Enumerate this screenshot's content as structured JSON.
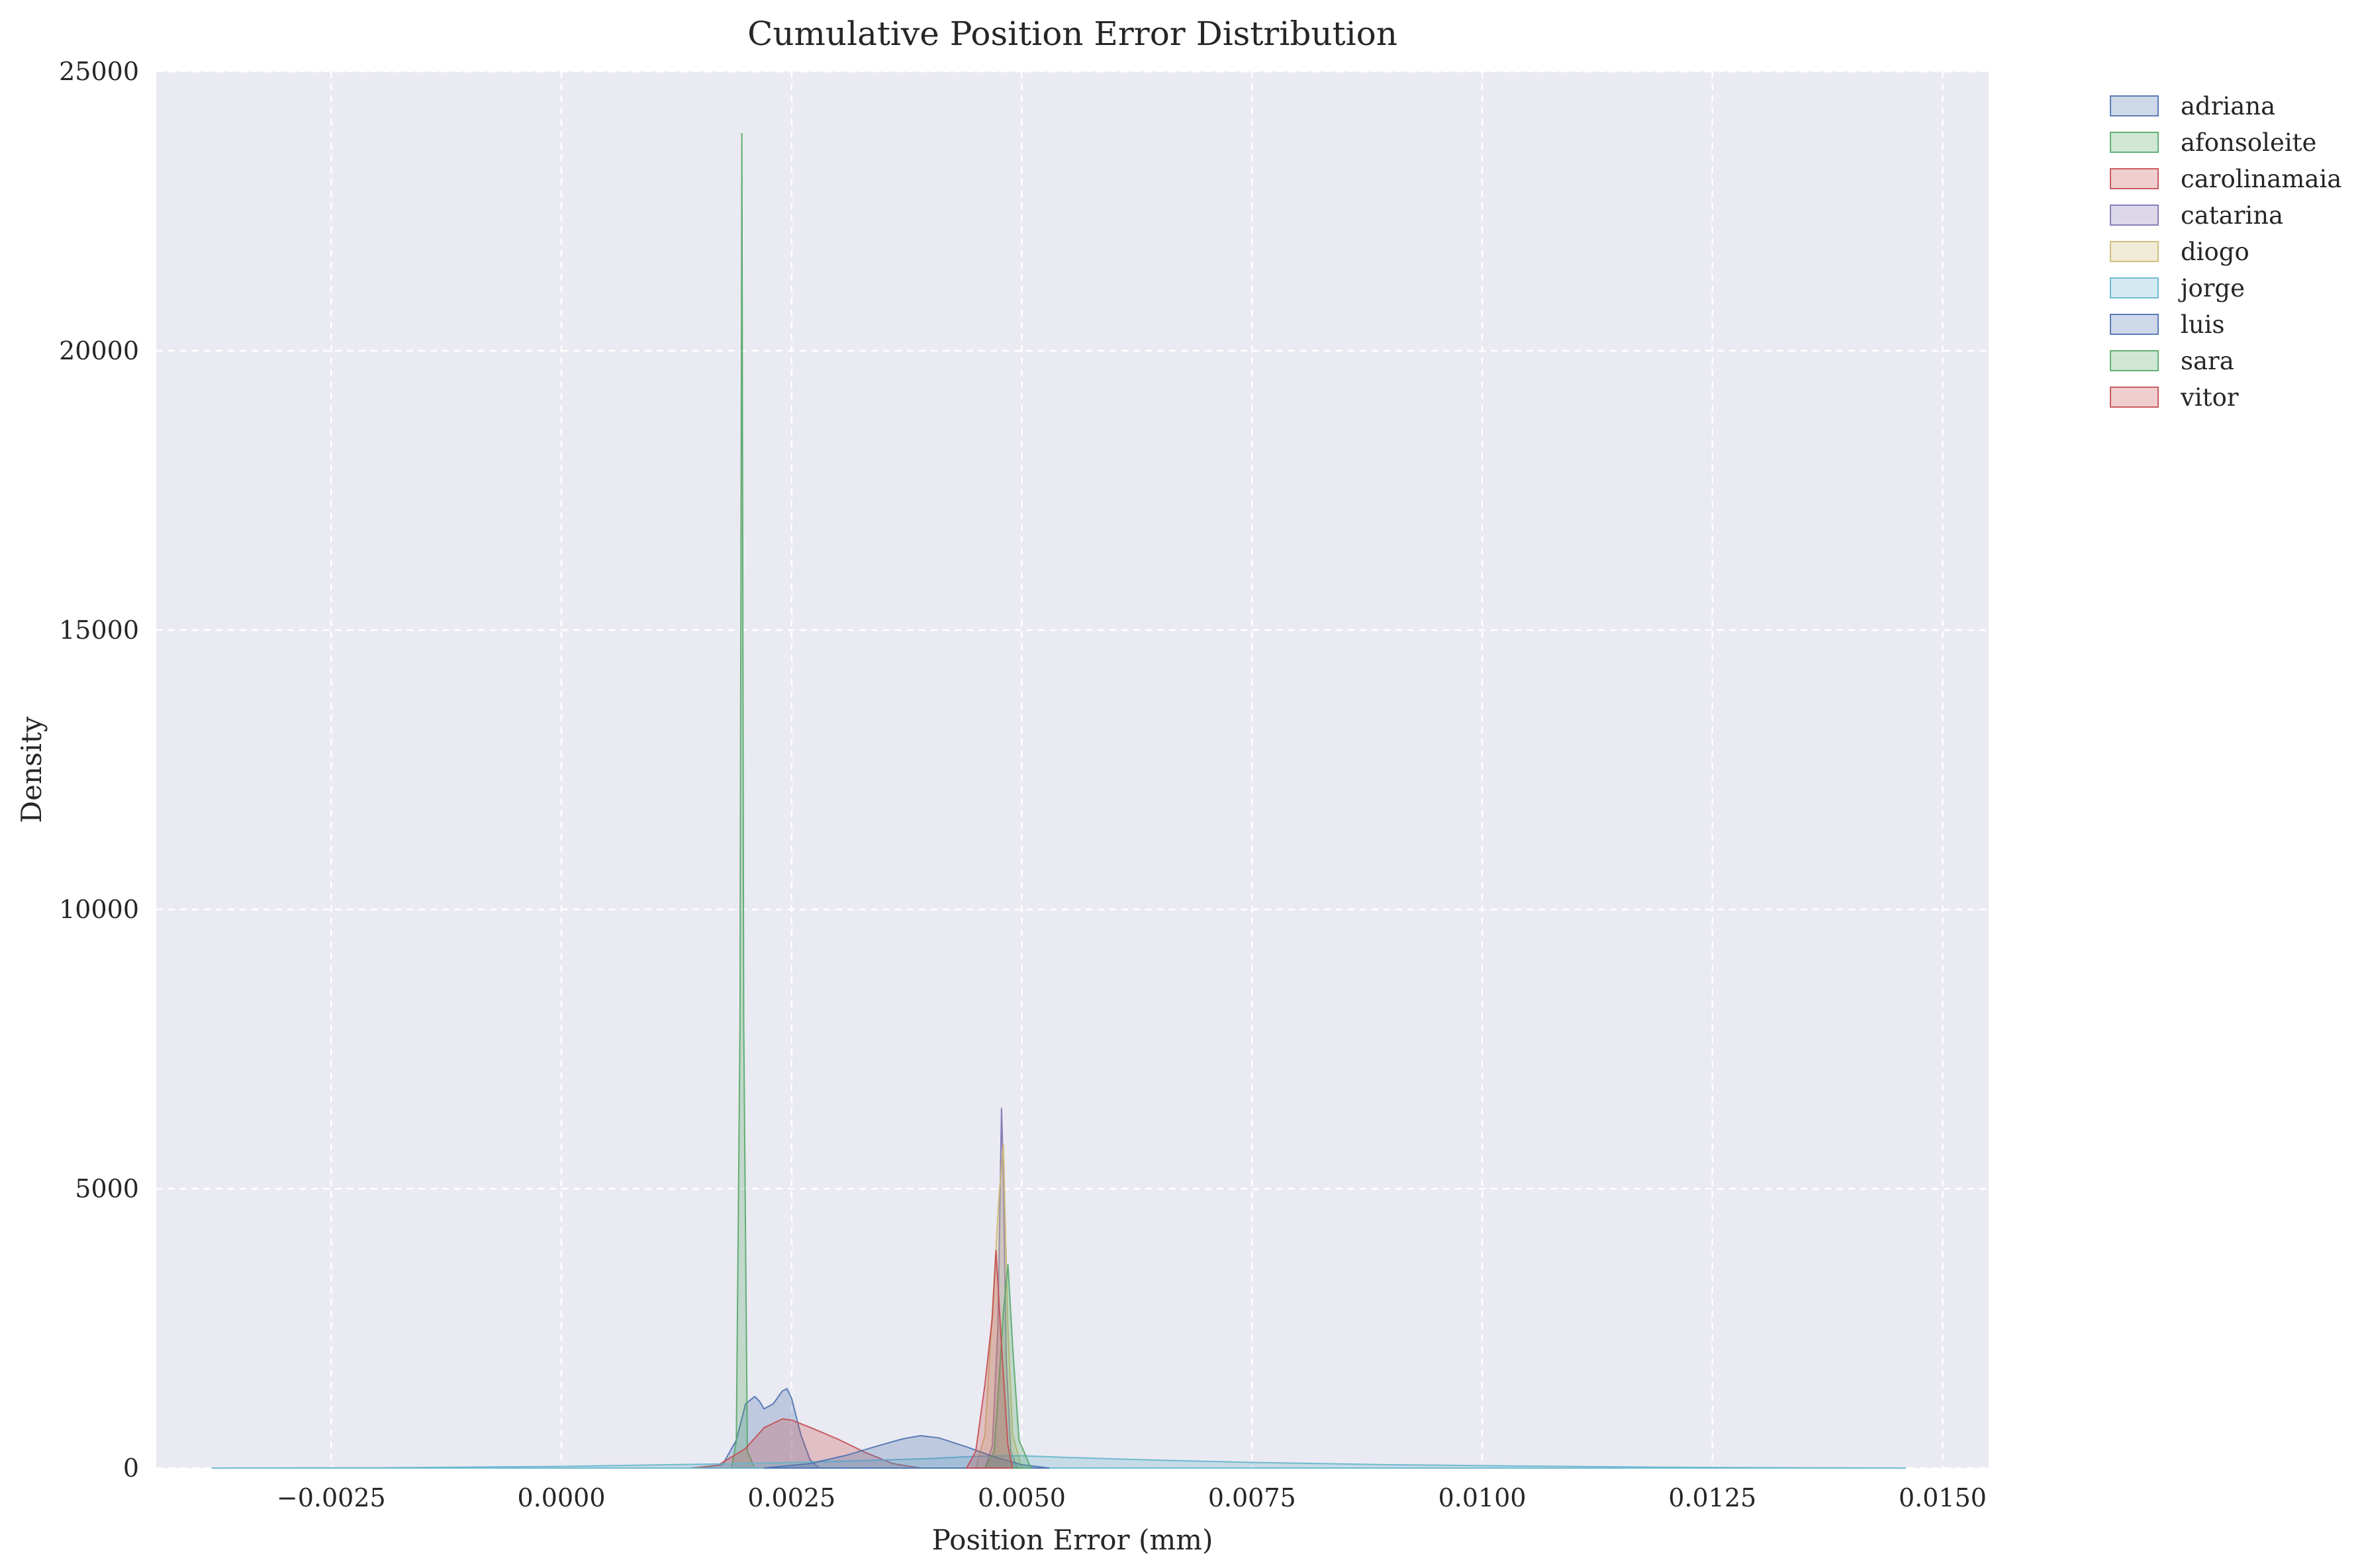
{
  "chart_data": {
    "type": "area",
    "title": "Cumulative Position Error Distribution",
    "xlabel": "Position Error (mm)",
    "ylabel": "Density",
    "xlim": [
      -0.0044,
      0.0155
    ],
    "ylim": [
      0,
      25000
    ],
    "xticks": [
      {
        "value": -0.0025,
        "label": "−0.0025"
      },
      {
        "value": 0.0,
        "label": "0.0000"
      },
      {
        "value": 0.0025,
        "label": "0.0025"
      },
      {
        "value": 0.005,
        "label": "0.0050"
      },
      {
        "value": 0.0075,
        "label": "0.0075"
      },
      {
        "value": 0.01,
        "label": "0.0100"
      },
      {
        "value": 0.0125,
        "label": "0.0125"
      },
      {
        "value": 0.015,
        "label": "0.0150"
      }
    ],
    "yticks": [
      {
        "value": 0,
        "label": "0"
      },
      {
        "value": 5000,
        "label": "5000"
      },
      {
        "value": 10000,
        "label": "10000"
      },
      {
        "value": 15000,
        "label": "15000"
      },
      {
        "value": 20000,
        "label": "20000"
      },
      {
        "value": 25000,
        "label": "25000"
      }
    ],
    "grid": true,
    "legend_position": "outside right top",
    "series": [
      {
        "name": "adriana",
        "color": "#4c72b0",
        "x": [
          0.0015,
          0.00175,
          0.0019,
          0.002,
          0.0021,
          0.00215,
          0.0022,
          0.0023,
          0.0024,
          0.00245,
          0.0025,
          0.0026,
          0.0027,
          0.0028
        ],
        "y": [
          0,
          60,
          500,
          1150,
          1280,
          1200,
          1060,
          1150,
          1380,
          1420,
          1250,
          600,
          150,
          0
        ]
      },
      {
        "name": "afonsoleite",
        "color": "#55a868",
        "x": [
          0.00185,
          0.0019,
          0.00194,
          0.00196,
          0.00198,
          0.00202,
          0.0021
        ],
        "y": [
          0,
          500,
          8000,
          23900,
          8000,
          300,
          0
        ]
      },
      {
        "name": "carolinamaia",
        "color": "#c44e52",
        "x": [
          0.0014,
          0.0017,
          0.002,
          0.0022,
          0.0024,
          0.0025,
          0.0027,
          0.003,
          0.0033,
          0.0036,
          0.0039
        ],
        "y": [
          0,
          50,
          350,
          720,
          880,
          860,
          730,
          520,
          280,
          80,
          0
        ]
      },
      {
        "name": "catarina",
        "color": "#8172b3",
        "x": [
          0.0046,
          0.00468,
          0.00474,
          0.00478,
          0.0048,
          0.00483,
          0.00488,
          0.00495
        ],
        "y": [
          0,
          400,
          2500,
          6450,
          5200,
          2000,
          300,
          0
        ]
      },
      {
        "name": "diogo",
        "color": "#ccb974",
        "x": [
          0.0045,
          0.0046,
          0.00468,
          0.00475,
          0.0048,
          0.00485,
          0.0049,
          0.005
        ],
        "y": [
          0,
          600,
          2800,
          4800,
          5800,
          2500,
          600,
          0
        ]
      },
      {
        "name": "jorge",
        "color": "#64b5cd",
        "x": [
          -0.0038,
          -0.002,
          0.0,
          0.002,
          0.003,
          0.004,
          0.0045,
          0.005,
          0.0055,
          0.0065,
          0.0075,
          0.009,
          0.0105,
          0.012,
          0.0135,
          0.0146
        ],
        "y": [
          0,
          5,
          30,
          80,
          120,
          170,
          210,
          220,
          190,
          140,
          100,
          60,
          35,
          15,
          5,
          0
        ]
      },
      {
        "name": "luis",
        "color": "#4c72b0",
        "x": [
          0.0022,
          0.0027,
          0.0031,
          0.0034,
          0.0037,
          0.0039,
          0.0041,
          0.0044,
          0.0047,
          0.005,
          0.0053
        ],
        "y": [
          0,
          80,
          230,
          380,
          520,
          580,
          540,
          380,
          200,
          60,
          0
        ]
      },
      {
        "name": "sara",
        "color": "#55a868",
        "x": [
          0.0046,
          0.0047,
          0.00475,
          0.0048,
          0.00485,
          0.0049,
          0.00497,
          0.0051
        ],
        "y": [
          0,
          300,
          1500,
          2800,
          3650,
          2200,
          500,
          0
        ]
      },
      {
        "name": "vitor",
        "color": "#c44e52",
        "x": [
          0.0044,
          0.0045,
          0.0046,
          0.00468,
          0.00472,
          0.00478,
          0.00485,
          0.0049
        ],
        "y": [
          0,
          300,
          1500,
          2700,
          3900,
          2200,
          400,
          0
        ]
      }
    ]
  }
}
